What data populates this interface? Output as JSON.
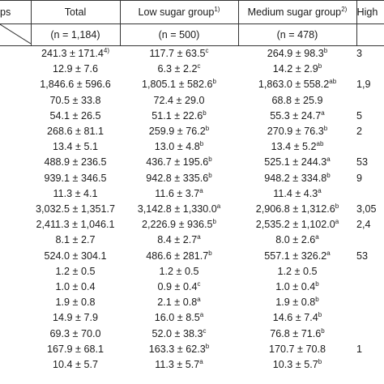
{
  "header": {
    "col0": "ps",
    "total": "Total",
    "low": "Low sugar group",
    "low_sup": "1)",
    "medium": "Medium sugar group",
    "medium_sup": "2)",
    "high": "High"
  },
  "subheader": {
    "col0": "",
    "total": "(n = 1,184)",
    "low": "(n = 500)",
    "medium": "(n = 478)",
    "high": ""
  },
  "rows": [
    {
      "total": "241.3 ± 171.4",
      "total_sup": "4)",
      "low": "117.7 ± 63.5",
      "low_sup": "c",
      "medium": "264.9 ± 98.3",
      "medium_sup": "b",
      "high": "3"
    },
    {
      "total": "12.9 ± 7.6",
      "total_sup": "",
      "low": "6.3 ± 2.2",
      "low_sup": "c",
      "medium": "14.2 ± 2.9",
      "medium_sup": "b",
      "high": ""
    },
    {
      "total": "1,846.6 ± 596.6",
      "total_sup": "",
      "low": "1,805.1 ± 582.6",
      "low_sup": "b",
      "medium": "1,863.0 ± 558.2",
      "medium_sup": "ab",
      "high": "1,9"
    },
    {
      "total": "70.5 ± 33.8",
      "total_sup": "",
      "low": "72.4 ± 29.0",
      "low_sup": "",
      "medium": "68.8 ± 25.9",
      "medium_sup": "",
      "high": ""
    },
    {
      "total": "54.1 ± 26.5",
      "total_sup": "",
      "low": "51.1 ± 22.6",
      "low_sup": "b",
      "medium": "55.3 ± 24.7",
      "medium_sup": "a",
      "high": "5"
    },
    {
      "total": "268.6 ± 81.1",
      "total_sup": "",
      "low": "259.9 ± 76.2",
      "low_sup": "b",
      "medium": "270.9 ± 76.3",
      "medium_sup": "b",
      "high": "2"
    },
    {
      "total": "13.4 ± 5.1",
      "total_sup": "",
      "low": "13.0 ± 4.8",
      "low_sup": "b",
      "medium": "13.4 ± 5.2",
      "medium_sup": "ab",
      "high": ""
    },
    {
      "total": "488.9 ± 236.5",
      "total_sup": "",
      "low": "436.7 ± 195.6",
      "low_sup": "b",
      "medium": "525.1 ± 244.3",
      "medium_sup": "a",
      "high": "53"
    },
    {
      "total": "939.1 ± 346.5",
      "total_sup": "",
      "low": "942.8 ± 335.6",
      "low_sup": "b",
      "medium": "948.2 ± 334.8",
      "medium_sup": "b",
      "high": "9"
    },
    {
      "total": "11.3 ± 4.1",
      "total_sup": "",
      "low": "11.6 ± 3.7",
      "low_sup": "a",
      "medium": "11.4 ± 4.3",
      "medium_sup": "a",
      "high": ""
    },
    {
      "total": "3,032.5 ± 1,351.7",
      "total_sup": "",
      "low": "3,142.8 ± 1,330.0",
      "low_sup": "a",
      "medium": "2,906.8 ± 1,312.6",
      "medium_sup": "b",
      "high": "3,05"
    },
    {
      "total": "2,411.3 ± 1,046.1",
      "total_sup": "",
      "low": "2,226.9 ± 936.5",
      "low_sup": "b",
      "medium": "2,535.2 ± 1,102.0",
      "medium_sup": "a",
      "high": "2,4"
    },
    {
      "total": "8.1 ± 2.7",
      "total_sup": "",
      "low": "8.4 ± 2.7",
      "low_sup": "a",
      "medium": "8.0 ± 2.6",
      "medium_sup": "a",
      "high": ""
    },
    {
      "total": "524.0 ± 304.1",
      "total_sup": "",
      "low": "486.6 ± 281.7",
      "low_sup": "b",
      "medium": "557.1 ± 326.2",
      "medium_sup": "a",
      "high": "53"
    },
    {
      "total": "1.2 ± 0.5",
      "total_sup": "",
      "low": "1.2 ± 0.5",
      "low_sup": "",
      "medium": "1.2 ± 0.5",
      "medium_sup": "",
      "high": ""
    },
    {
      "total": "1.0 ± 0.4",
      "total_sup": "",
      "low": "0.9 ± 0.4",
      "low_sup": "c",
      "medium": "1.0 ± 0.4",
      "medium_sup": "b",
      "high": ""
    },
    {
      "total": "1.9 ± 0.8",
      "total_sup": "",
      "low": "2.1 ± 0.8",
      "low_sup": "a",
      "medium": "1.9 ± 0.8",
      "medium_sup": "b",
      "high": ""
    },
    {
      "total": "14.9 ± 7.9",
      "total_sup": "",
      "low": "16.0 ± 8.5",
      "low_sup": "a",
      "medium": "14.6 ± 7.4",
      "medium_sup": "b",
      "high": ""
    },
    {
      "total": "69.3 ± 70.0",
      "total_sup": "",
      "low": "52.0 ± 38.3",
      "low_sup": "c",
      "medium": "76.8 ± 71.6",
      "medium_sup": "b",
      "high": ""
    },
    {
      "total": "167.9 ± 68.1",
      "total_sup": "",
      "low": "163.3 ± 62.3",
      "low_sup": "b",
      "medium": "170.7 ± 70.8",
      "medium_sup": "",
      "high": "1"
    },
    {
      "total": "10.4 ± 5.7",
      "total_sup": "",
      "low": "11.3 ± 5.7",
      "low_sup": "a",
      "medium": "10.3 ± 5.7",
      "medium_sup": "b",
      "high": ""
    }
  ]
}
